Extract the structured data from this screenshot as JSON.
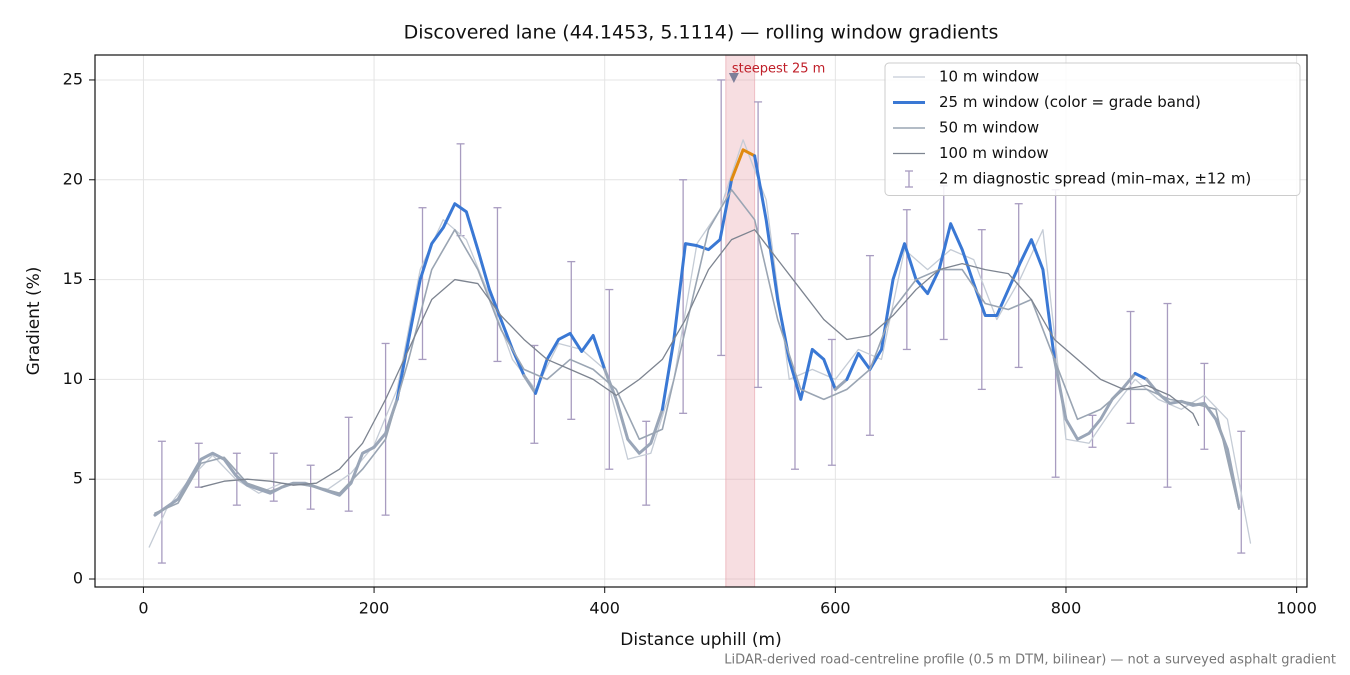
{
  "chart_data": {
    "type": "line",
    "title": "Discovered lane (44.1453, 5.1114) — rolling window gradients",
    "xlabel": "Distance uphill (m)",
    "ylabel": "Gradient (%)",
    "footnote": "LiDAR-derived road-centreline profile (0.5 m DTM, bilinear) — not a surveyed asphalt gradient",
    "xlim": [
      -42,
      1009
    ],
    "ylim": [
      -0.4,
      26.25
    ],
    "xticks": [
      0,
      200,
      400,
      600,
      800,
      1000
    ],
    "yticks": [
      0,
      5,
      10,
      15,
      20,
      25
    ],
    "grid": true,
    "legend": "upper right",
    "grade_bands": [
      {
        "min": 0,
        "color": "#9aa6b8"
      },
      {
        "min": 10,
        "color": "#3a78d4"
      },
      {
        "min": 20,
        "color": "#e08a10"
      }
    ],
    "series": [
      {
        "name": "10 m window",
        "color": "#c5ccd6",
        "linewidth": 1.3,
        "x": [
          5,
          20,
          40,
          60,
          80,
          100,
          120,
          140,
          160,
          180,
          200,
          220,
          240,
          260,
          280,
          300,
          320,
          340,
          360,
          380,
          400,
          420,
          440,
          460,
          480,
          500,
          520,
          540,
          560,
          580,
          600,
          620,
          640,
          660,
          680,
          700,
          720,
          740,
          760,
          780,
          800,
          820,
          840,
          860,
          880,
          900,
          920,
          940,
          960
        ],
        "values": [
          1.6,
          3.5,
          5.0,
          6.2,
          5.0,
          4.3,
          4.8,
          4.7,
          4.5,
          5.3,
          6.7,
          9.5,
          15.5,
          18.0,
          17.0,
          14.2,
          11.0,
          9.5,
          11.8,
          11.5,
          10.5,
          6.0,
          6.3,
          10.0,
          16.8,
          18.5,
          22.0,
          19.0,
          10.0,
          10.5,
          10.0,
          11.5,
          11.0,
          16.5,
          15.5,
          16.5,
          16.0,
          13.0,
          15.0,
          17.5,
          7.0,
          6.8,
          8.5,
          10.0,
          9.0,
          8.5,
          9.2,
          8.0,
          1.8
        ]
      },
      {
        "name": "25 m window (color = grade band)",
        "color": "#3a78d4",
        "linewidth": 3,
        "banded": true,
        "x": [
          10,
          20,
          30,
          40,
          50,
          60,
          70,
          80,
          90,
          100,
          110,
          120,
          130,
          140,
          150,
          160,
          170,
          180,
          190,
          200,
          210,
          220,
          230,
          240,
          250,
          260,
          270,
          280,
          290,
          300,
          310,
          320,
          330,
          340,
          350,
          360,
          370,
          380,
          390,
          400,
          410,
          420,
          430,
          440,
          450,
          460,
          470,
          480,
          490,
          500,
          510,
          520,
          530,
          540,
          550,
          560,
          570,
          580,
          590,
          600,
          610,
          620,
          630,
          640,
          650,
          660,
          670,
          680,
          690,
          700,
          710,
          720,
          730,
          740,
          750,
          760,
          770,
          780,
          790,
          800,
          810,
          820,
          830,
          840,
          850,
          860,
          870,
          880,
          890,
          900,
          910,
          920,
          930,
          940,
          950
        ],
        "values": [
          3.2,
          3.6,
          4.0,
          5.0,
          6.0,
          6.3,
          6.0,
          5.2,
          4.7,
          4.5,
          4.3,
          4.6,
          4.8,
          4.8,
          4.6,
          4.4,
          4.2,
          4.8,
          6.3,
          6.6,
          7.3,
          9.0,
          12.0,
          15.0,
          16.8,
          17.6,
          18.8,
          18.4,
          16.5,
          14.5,
          13.0,
          11.5,
          10.2,
          9.3,
          11.0,
          12.0,
          12.3,
          11.4,
          12.2,
          10.5,
          9.0,
          7.0,
          6.3,
          6.8,
          8.5,
          12.0,
          16.8,
          16.7,
          16.5,
          17.0,
          20.0,
          21.5,
          21.2,
          18.0,
          14.0,
          11.0,
          9.0,
          11.5,
          11.0,
          9.5,
          10.0,
          11.3,
          10.5,
          11.5,
          15.0,
          16.8,
          15.0,
          14.3,
          15.5,
          17.8,
          16.5,
          14.8,
          13.2,
          13.2,
          14.5,
          15.8,
          17.0,
          15.5,
          11.0,
          8.0,
          7.0,
          7.3,
          8.0,
          9.0,
          9.6,
          10.3,
          10.0,
          9.3,
          8.8,
          8.9,
          8.7,
          8.8,
          8.0,
          6.5,
          3.6
        ]
      },
      {
        "name": "50 m window",
        "color": "#9aa5b3",
        "linewidth": 1.6,
        "x": [
          10,
          30,
          50,
          70,
          90,
          110,
          130,
          150,
          170,
          190,
          210,
          230,
          250,
          270,
          290,
          310,
          330,
          350,
          370,
          390,
          410,
          430,
          450,
          470,
          490,
          510,
          530,
          550,
          570,
          590,
          610,
          630,
          650,
          670,
          690,
          710,
          730,
          750,
          770,
          790,
          810,
          830,
          850,
          870,
          890,
          910,
          930,
          950
        ],
        "values": [
          3.3,
          3.8,
          5.8,
          6.1,
          4.8,
          4.4,
          4.8,
          4.6,
          4.3,
          5.5,
          7.0,
          11.0,
          15.5,
          17.5,
          15.5,
          12.5,
          10.5,
          10.0,
          11.0,
          10.5,
          9.5,
          7.0,
          7.5,
          12.5,
          17.5,
          19.5,
          18.0,
          13.0,
          9.5,
          9.0,
          9.5,
          10.5,
          13.5,
          15.0,
          15.5,
          15.5,
          13.8,
          13.5,
          14.0,
          11.0,
          8.0,
          8.5,
          9.5,
          9.5,
          9.0,
          8.8,
          8.5,
          3.5
        ]
      },
      {
        "name": "100 m window",
        "color": "#7d8490",
        "linewidth": 1.3,
        "x": [
          50,
          70,
          90,
          110,
          130,
          150,
          170,
          190,
          210,
          230,
          250,
          270,
          290,
          310,
          330,
          350,
          370,
          390,
          410,
          430,
          450,
          470,
          490,
          510,
          530,
          550,
          570,
          590,
          610,
          630,
          650,
          670,
          690,
          710,
          730,
          750,
          770,
          790,
          810,
          830,
          850,
          870,
          890,
          910,
          915
        ],
        "values": [
          4.6,
          4.9,
          5.0,
          4.9,
          4.7,
          4.8,
          5.5,
          6.8,
          9.0,
          11.5,
          14.0,
          15.0,
          14.8,
          13.2,
          12.0,
          11.0,
          10.5,
          10.0,
          9.2,
          10.0,
          11.0,
          13.0,
          15.5,
          17.0,
          17.5,
          16.0,
          14.5,
          13.0,
          12.0,
          12.2,
          13.2,
          14.5,
          15.5,
          15.8,
          15.5,
          15.3,
          14.0,
          12.0,
          11.0,
          10.0,
          9.5,
          9.7,
          9.2,
          8.3,
          7.7
        ]
      }
    ],
    "errorbars": {
      "name": "2 m diagnostic spread (min–max, ±12 m)",
      "color": "#a89cc0",
      "x": [
        16,
        48,
        81,
        113,
        145,
        178,
        210,
        242,
        275,
        307,
        339,
        371,
        404,
        436,
        468,
        501,
        533,
        565,
        597,
        630,
        662,
        694,
        727,
        759,
        791,
        823,
        856,
        888,
        920,
        952
      ],
      "low": [
        0.8,
        4.6,
        3.7,
        3.9,
        3.5,
        3.4,
        3.2,
        11.0,
        17.2,
        10.9,
        6.8,
        8.0,
        5.5,
        3.7,
        8.3,
        11.2,
        9.6,
        5.5,
        5.7,
        7.2,
        11.5,
        12.0,
        9.5,
        10.6,
        5.1,
        6.6,
        7.8,
        4.6,
        6.5,
        1.3
      ],
      "high": [
        6.9,
        6.8,
        6.3,
        6.3,
        5.7,
        8.1,
        11.8,
        18.6,
        21.8,
        18.6,
        11.7,
        15.9,
        14.5,
        7.9,
        20.0,
        25.0,
        23.9,
        17.3,
        12.0,
        16.2,
        18.5,
        19.7,
        17.5,
        18.8,
        19.5,
        8.2,
        13.4,
        13.8,
        10.8,
        7.4
      ]
    },
    "highlight": {
      "span": [
        505,
        530
      ],
      "color": "#e8a0a8"
    },
    "annotation": {
      "text": "steepest 25 m",
      "x": 512,
      "y": 25.1,
      "color": "#c0202a"
    }
  }
}
